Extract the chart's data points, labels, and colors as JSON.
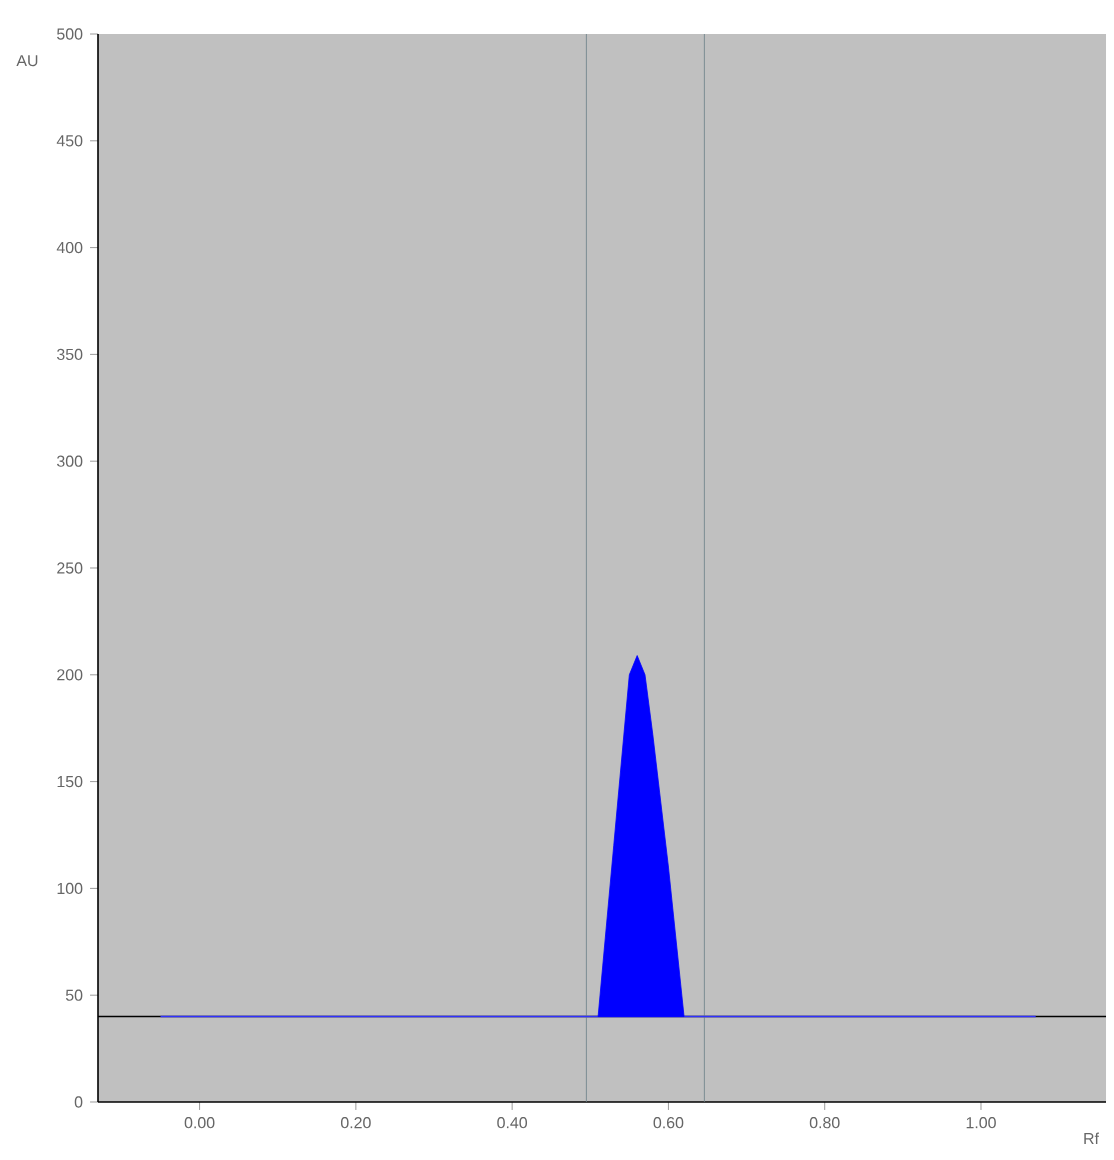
{
  "chart_data": {
    "type": "line",
    "xlabel": "Rf",
    "ylabel": "AU",
    "xlim": [
      -0.13,
      1.16
    ],
    "ylim": [
      0,
      500
    ],
    "xticks": [
      {
        "value": 0,
        "label": "0.00"
      },
      {
        "value": 0.2,
        "label": "0.20"
      },
      {
        "value": 0.4,
        "label": "0.40"
      },
      {
        "value": 0.6,
        "label": "0.60"
      },
      {
        "value": 0.8,
        "label": "0.80"
      },
      {
        "value": 1.0,
        "label": "1.00"
      }
    ],
    "yticks": [
      0,
      50,
      100,
      150,
      200,
      250,
      300,
      350,
      400,
      450,
      500
    ],
    "grid": false,
    "series": [
      {
        "type": "line",
        "color": "#3030ff",
        "x": [
          -0.05,
          1.07
        ],
        "values": [
          40,
          40
        ]
      },
      {
        "type": "area",
        "color": "#0000ff",
        "x": [
          0.51,
          0.53,
          0.55,
          0.56,
          0.57,
          0.58,
          0.6,
          0.62
        ],
        "values": [
          40,
          120,
          200,
          209,
          200,
          172,
          110,
          40
        ]
      }
    ],
    "ref_lines": [
      {
        "axis": "y",
        "value": 40,
        "color": "#000000"
      },
      {
        "axis": "x",
        "value": 0.495,
        "color": "#6a7f86"
      },
      {
        "axis": "x",
        "value": 0.646,
        "color": "#6a7f86"
      }
    ]
  }
}
